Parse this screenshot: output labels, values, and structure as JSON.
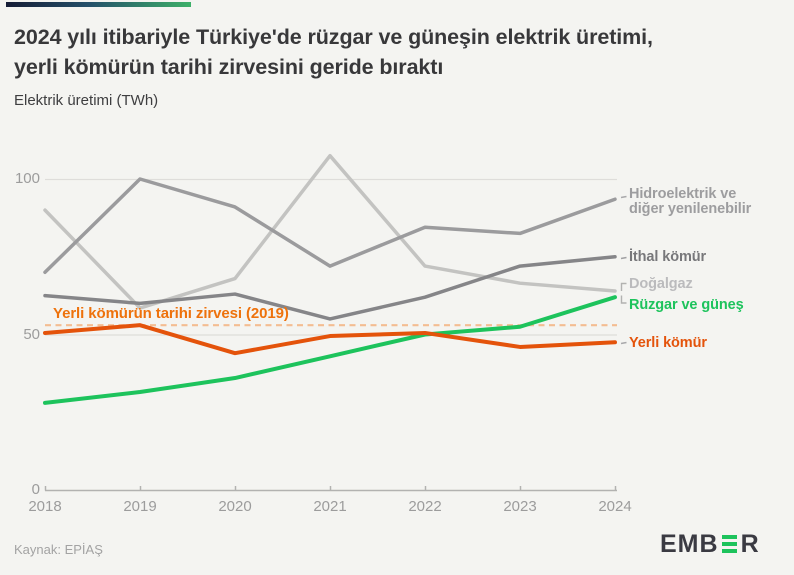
{
  "header": {
    "title": "2024 yılı itibariyle Türkiye'de rüzgar ve güneşin elektrik üretimi,\nyerli kömürün tarihi zirvesini geride bıraktı",
    "subtitle": "Elektrik üretimi (TWh)"
  },
  "accent_colors": {
    "left": "#161d36",
    "right": "#3db069"
  },
  "chart_data": {
    "type": "line",
    "x": [
      2018,
      2019,
      2020,
      2021,
      2022,
      2023,
      2024
    ],
    "title": "2024 yılı itibariyle Türkiye'de rüzgar ve güneşin elektrik üretimi, yerli kömürün tarihi zirvesini geride bıraktı",
    "ylabel": "Elektrik üretimi (TWh)",
    "ylim": [
      0,
      112
    ],
    "yticks": [
      0,
      50,
      100
    ],
    "grid": "horizontal",
    "legend_position": "right-end-labels",
    "series": [
      {
        "name": "Hidroelektrik ve diğer yenilenebilir",
        "end_label": "Hidroelektrik ve\ndiğer yenilenebilir",
        "color": "#9b9b9d",
        "label_color": "#9d9d9f",
        "values": [
          70,
          100,
          91,
          72,
          84.5,
          82.5,
          93.5
        ]
      },
      {
        "name": "İthal kömür",
        "end_label": "İthal kömür",
        "color": "#858588",
        "label_color": "#77777a",
        "values": [
          62.5,
          60,
          63,
          55,
          62,
          72,
          75
        ]
      },
      {
        "name": "Doğalgaz",
        "end_label": "Doğalgaz",
        "color": "#c3c3c1",
        "label_color": "#bbbbbd",
        "values": [
          90,
          58.5,
          68,
          107.5,
          72,
          66.5,
          64
        ]
      },
      {
        "name": "Rüzgar ve güneş",
        "end_label": "Rüzgar ve güneş",
        "color": "#1dc35c",
        "label_color": "#1dc35c",
        "values": [
          28,
          31.5,
          36,
          43,
          50,
          52.5,
          62
        ]
      },
      {
        "name": "Yerli kömür",
        "end_label": "Yerli kömür",
        "color": "#e4530b",
        "label_color": "#e4530b",
        "values": [
          50.5,
          53,
          44,
          49.5,
          50.5,
          46,
          47.5
        ]
      }
    ],
    "reference_line": {
      "label": "Yerli kömürün tarihi zirvesi (2019)",
      "value": 53,
      "style": "dashed",
      "line_color": "#f3bd92",
      "label_color": "#ee720c"
    }
  },
  "footer": {
    "source": "Kaynak: EPİAŞ",
    "logo_text_parts": {
      "left": "EMB",
      "right": "R"
    }
  }
}
